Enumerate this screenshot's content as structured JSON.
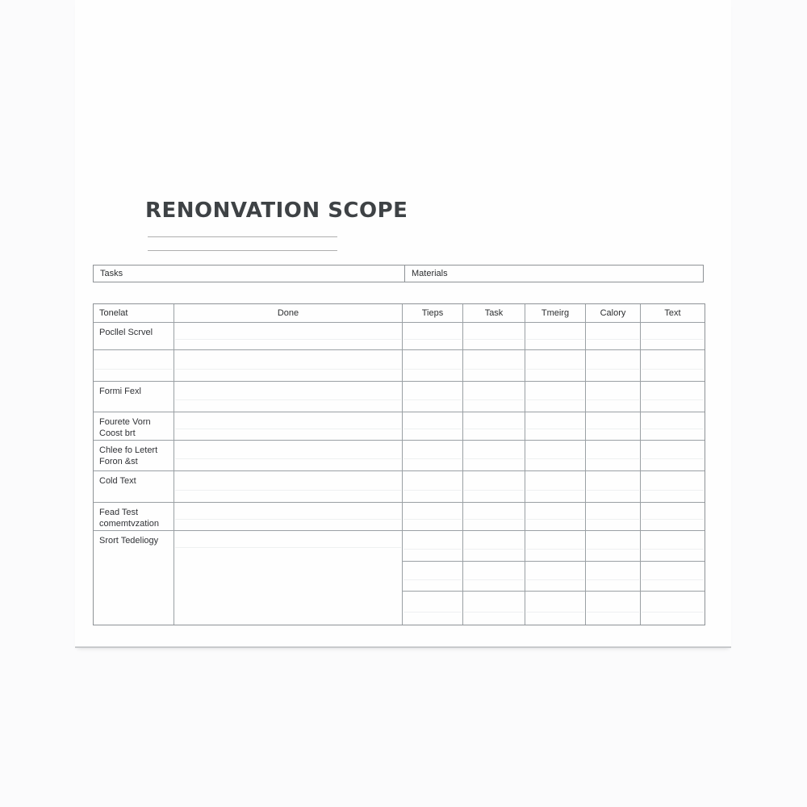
{
  "document": {
    "title": "RENONVATION SCOPE"
  },
  "sections": [
    {
      "label": "Tasks"
    },
    {
      "label": "Materials"
    }
  ],
  "table": {
    "headers": [
      "Tonelat",
      "Done",
      "Tieps",
      "Task",
      "Tmeirg",
      "Calory",
      "Text"
    ],
    "rows": [
      {
        "label": "Pocllel Scrvel"
      },
      {
        "label": ""
      },
      {
        "label": "Formi Fexl"
      },
      {
        "label": "Fourete Vorn Coost brt"
      },
      {
        "label": "Chlee fo Letert Foron &st"
      },
      {
        "label": "Cold Text"
      },
      {
        "label": "Fead Test comemtvzation"
      },
      {
        "label": "Srort Tedeliogy"
      }
    ]
  },
  "colors": {
    "title": "#3e4245",
    "text": "#303236",
    "border": "#8e9296",
    "faint_line": "#eef0f1",
    "underline": "#aeaeae",
    "page_edge": "#c8cacc"
  }
}
